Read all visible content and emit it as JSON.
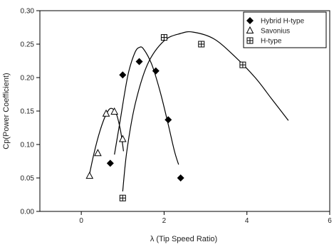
{
  "chart_data": {
    "type": "scatter",
    "xlabel": "λ  (Tip Speed Ratio)",
    "ylabel": "Cp(Power Coefficient)",
    "xlim": [
      -1,
      6
    ],
    "ylim": [
      0,
      0.3
    ],
    "x_ticks": [
      "0",
      "2",
      "4",
      "6"
    ],
    "y_ticks": [
      "0.00",
      "0.05",
      "0.10",
      "0.15",
      "0.20",
      "0.25",
      "0.30"
    ],
    "grid": false,
    "legend_position": "top-right",
    "series": [
      {
        "name": "Hybrid H-type",
        "marker": "diamond",
        "color": "#000000",
        "points": [
          [
            0.7,
            0.072
          ],
          [
            1.0,
            0.204
          ],
          [
            1.4,
            0.224
          ],
          [
            1.8,
            0.21
          ],
          [
            2.1,
            0.137
          ],
          [
            2.4,
            0.05
          ]
        ],
        "fit": [
          [
            0.8,
            0.085
          ],
          [
            0.95,
            0.14
          ],
          [
            1.05,
            0.178
          ],
          [
            1.15,
            0.21
          ],
          [
            1.3,
            0.238
          ],
          [
            1.4,
            0.245
          ],
          [
            1.5,
            0.243
          ],
          [
            1.7,
            0.22
          ],
          [
            1.9,
            0.18
          ],
          [
            2.1,
            0.13
          ],
          [
            2.25,
            0.09
          ],
          [
            2.35,
            0.07
          ]
        ]
      },
      {
        "name": "Savonius",
        "marker": "triangle",
        "color": "#000000",
        "points": [
          [
            0.2,
            0.053
          ],
          [
            0.4,
            0.087
          ],
          [
            0.6,
            0.146
          ],
          [
            0.8,
            0.149
          ],
          [
            1.0,
            0.108
          ]
        ],
        "fit": [
          [
            0.18,
            0.05
          ],
          [
            0.3,
            0.085
          ],
          [
            0.45,
            0.12
          ],
          [
            0.6,
            0.145
          ],
          [
            0.72,
            0.154
          ],
          [
            0.85,
            0.145
          ],
          [
            0.95,
            0.12
          ],
          [
            1.02,
            0.09
          ]
        ]
      },
      {
        "name": "H-type",
        "marker": "square-plus",
        "color": "#000000",
        "points": [
          [
            1.0,
            0.02
          ],
          [
            2.0,
            0.26
          ],
          [
            2.9,
            0.25
          ],
          [
            3.9,
            0.219
          ]
        ],
        "fit": [
          [
            1.0,
            0.03
          ],
          [
            1.1,
            0.09
          ],
          [
            1.3,
            0.16
          ],
          [
            1.6,
            0.22
          ],
          [
            2.0,
            0.255
          ],
          [
            2.4,
            0.266
          ],
          [
            2.7,
            0.268
          ],
          [
            3.2,
            0.258
          ],
          [
            3.7,
            0.232
          ],
          [
            4.2,
            0.2
          ],
          [
            4.6,
            0.168
          ],
          [
            5.0,
            0.136
          ]
        ]
      }
    ]
  }
}
